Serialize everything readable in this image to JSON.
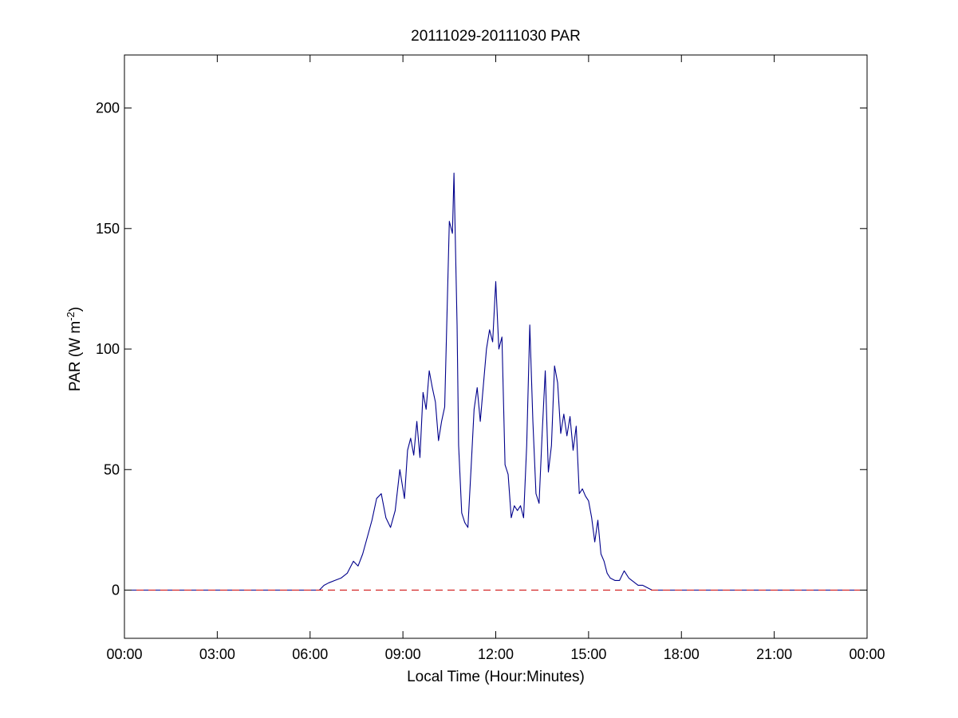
{
  "chart_data": {
    "type": "line",
    "title": "20111029-20111030 PAR",
    "xlabel": "Local Time (Hour:Minutes)",
    "ylabel_main": "PAR (W m",
    "ylabel_sup": "-2",
    "ylabel_close": ")",
    "xlim": [
      0,
      24
    ],
    "ylim": [
      -20,
      222
    ],
    "xticks": [
      {
        "value": 0,
        "label": "00:00"
      },
      {
        "value": 3,
        "label": "03:00"
      },
      {
        "value": 6,
        "label": "06:00"
      },
      {
        "value": 9,
        "label": "09:00"
      },
      {
        "value": 12,
        "label": "12:00"
      },
      {
        "value": 15,
        "label": "15:00"
      },
      {
        "value": 18,
        "label": "18:00"
      },
      {
        "value": 21,
        "label": "21:00"
      },
      {
        "value": 24,
        "label": "00:00"
      }
    ],
    "yticks": [
      {
        "value": 0,
        "label": "0"
      },
      {
        "value": 50,
        "label": "50"
      },
      {
        "value": 100,
        "label": "100"
      },
      {
        "value": 150,
        "label": "150"
      },
      {
        "value": 200,
        "label": "200"
      }
    ],
    "grid": false,
    "colors": {
      "par_line": "#00008b",
      "zero_line": "#cc0000"
    },
    "series": [
      {
        "style": "solid",
        "x": [
          0,
          6.3,
          6.45,
          6.6,
          6.8,
          7.0,
          7.2,
          7.4,
          7.55,
          7.7,
          7.85,
          8.0,
          8.15,
          8.3,
          8.45,
          8.6,
          8.75,
          8.9,
          9.05,
          9.15,
          9.25,
          9.35,
          9.45,
          9.55,
          9.65,
          9.75,
          9.85,
          9.95,
          10.05,
          10.15,
          10.25,
          10.35,
          10.5,
          10.6,
          10.65,
          10.75,
          10.8,
          10.9,
          11.0,
          11.1,
          11.2,
          11.3,
          11.4,
          11.5,
          11.6,
          11.7,
          11.8,
          11.9,
          12.0,
          12.1,
          12.2,
          12.3,
          12.4,
          12.5,
          12.6,
          12.7,
          12.8,
          12.9,
          13.0,
          13.1,
          13.2,
          13.3,
          13.4,
          13.5,
          13.6,
          13.7,
          13.8,
          13.9,
          14.0,
          14.1,
          14.2,
          14.3,
          14.4,
          14.5,
          14.6,
          14.7,
          14.8,
          14.9,
          15.0,
          15.1,
          15.2,
          15.3,
          15.4,
          15.5,
          15.6,
          15.7,
          15.85,
          16.0,
          16.15,
          16.3,
          16.4,
          16.5,
          16.6,
          16.75,
          16.9,
          17.05,
          17.2,
          17.4,
          24
        ],
        "y": [
          0,
          0,
          2,
          3,
          4,
          5,
          7,
          12,
          10,
          15,
          22,
          29,
          38,
          40,
          30,
          26,
          33,
          50,
          38,
          58,
          63,
          56,
          70,
          55,
          82,
          75,
          91,
          84,
          78,
          62,
          70,
          76,
          153,
          148,
          173,
          110,
          60,
          32,
          28,
          26,
          50,
          75,
          84,
          70,
          85,
          100,
          108,
          103,
          128,
          100,
          105,
          52,
          48,
          30,
          35,
          33,
          35,
          30,
          60,
          110,
          70,
          40,
          36,
          65,
          91,
          49,
          60,
          93,
          86,
          65,
          73,
          64,
          72,
          58,
          68,
          40,
          42,
          39,
          37,
          30,
          20,
          29,
          15,
          12,
          7,
          5,
          4,
          4,
          8,
          5,
          4,
          3,
          2,
          2,
          1,
          0,
          0,
          0,
          0
        ]
      },
      {
        "style": "dashed",
        "x": [
          0,
          24
        ],
        "y": [
          0,
          0
        ]
      }
    ]
  }
}
